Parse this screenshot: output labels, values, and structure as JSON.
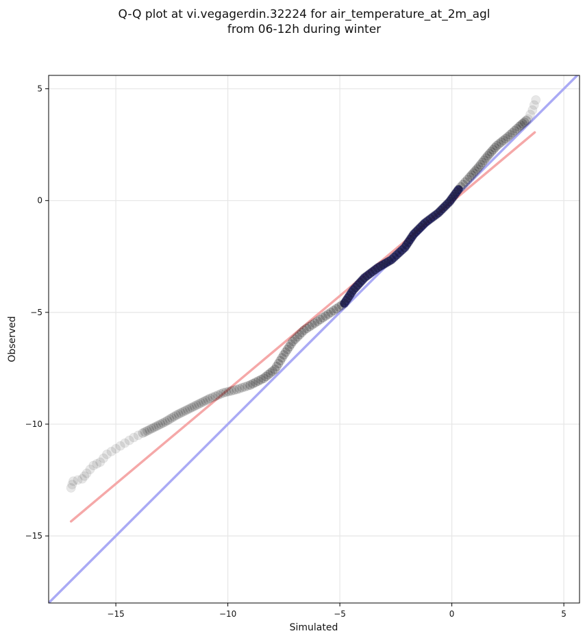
{
  "chart_data": {
    "type": "scatter",
    "title": "Q-Q plot at vi.vegagerdin.32224 for air_temperature_at_2m_agl",
    "subtitle": "from 06-12h during winter",
    "xlabel": "Simulated",
    "ylabel": "Observed",
    "xlim": [
      -18.0,
      5.7
    ],
    "ylim": [
      -18.0,
      5.6
    ],
    "x_ticks": [
      -15,
      -10,
      -5,
      0,
      5
    ],
    "y_ticks": [
      -15,
      -10,
      -5,
      0,
      5
    ],
    "x_tick_labels": [
      "−15",
      "−10",
      "−5",
      "0",
      "5"
    ],
    "y_tick_labels": [
      "−15",
      "−10",
      "−5",
      "0",
      "5"
    ],
    "grid": true,
    "colors": {
      "points": "#000000",
      "identity_line": "#aaaaf5",
      "fit_line": "#f5a8a8",
      "highlight": "#2a2a8a"
    },
    "series": [
      {
        "kind": "quantiles",
        "points": [
          [
            -17.0,
            -12.85
          ],
          [
            -16.9,
            -12.55
          ],
          [
            -16.5,
            -12.45
          ],
          [
            -16.3,
            -12.2
          ],
          [
            -16.0,
            -11.85
          ],
          [
            -15.7,
            -11.7
          ],
          [
            -15.4,
            -11.35
          ],
          [
            -15.0,
            -11.1
          ],
          [
            -14.6,
            -10.85
          ],
          [
            -14.2,
            -10.6
          ],
          [
            -13.8,
            -10.4
          ],
          [
            -13.3,
            -10.15
          ],
          [
            -12.8,
            -9.9
          ],
          [
            -12.3,
            -9.6
          ],
          [
            -11.8,
            -9.35
          ],
          [
            -11.3,
            -9.1
          ],
          [
            -10.8,
            -8.85
          ],
          [
            -10.2,
            -8.6
          ],
          [
            -9.6,
            -8.45
          ],
          [
            -9.0,
            -8.25
          ],
          [
            -8.4,
            -7.95
          ],
          [
            -7.9,
            -7.55
          ],
          [
            -7.5,
            -6.9
          ],
          [
            -7.1,
            -6.3
          ],
          [
            -6.6,
            -5.8
          ],
          [
            -6.0,
            -5.4
          ],
          [
            -5.4,
            -5.0
          ],
          [
            -4.8,
            -4.6
          ],
          [
            -4.4,
            -4.0
          ],
          [
            -3.9,
            -3.45
          ],
          [
            -3.3,
            -3.0
          ],
          [
            -2.7,
            -2.65
          ],
          [
            -2.1,
            -2.1
          ],
          [
            -1.7,
            -1.5
          ],
          [
            -1.2,
            -1.0
          ],
          [
            -0.6,
            -0.55
          ],
          [
            -0.1,
            -0.05
          ],
          [
            0.3,
            0.5
          ],
          [
            0.8,
            1.05
          ],
          [
            1.2,
            1.5
          ],
          [
            1.6,
            2.0
          ],
          [
            2.0,
            2.45
          ],
          [
            2.5,
            2.85
          ],
          [
            3.0,
            3.3
          ],
          [
            3.4,
            3.65
          ],
          [
            3.6,
            4.05
          ],
          [
            3.75,
            4.5
          ]
        ]
      },
      {
        "kind": "identity",
        "points": [
          [
            -18.0,
            -18.0
          ],
          [
            5.6,
            5.6
          ]
        ]
      },
      {
        "kind": "fit",
        "points": [
          [
            -17.0,
            -14.35
          ],
          [
            3.7,
            3.05
          ]
        ]
      }
    ]
  }
}
